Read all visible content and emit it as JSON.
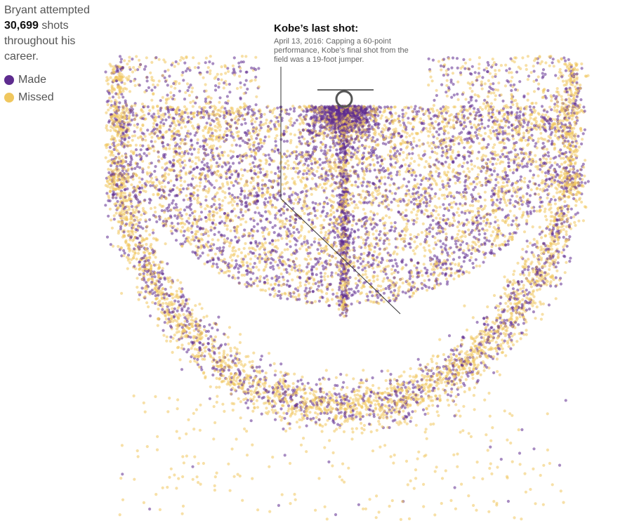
{
  "intro": {
    "prefix": "Bryant attempted",
    "count": "30,699",
    "suffix": " shots throughout his career."
  },
  "legend": {
    "made_label": "Made",
    "missed_label": "Missed"
  },
  "colors": {
    "made": "#5e2c8f",
    "missed": "#f0c75e",
    "highlight_ring": "#555555",
    "annotation_line": "#333333"
  },
  "annotation": {
    "title": "Kobe’s last shot:",
    "body": "April 13, 2016: Capping a 60-point performance, Kobe’s final shot from the field was a 19-foot jumper."
  },
  "chart_data": {
    "type": "scatter",
    "title": "",
    "xlabel": "",
    "ylabel": "",
    "total_attempts": 30699,
    "series": [
      {
        "name": "Made",
        "color": "#5e2c8f"
      },
      {
        "name": "Missed",
        "color": "#f0c75e"
      }
    ],
    "highlight": {
      "label": "Kobe’s last shot",
      "result": "Made",
      "distance_ft": 19
    },
    "grid": false,
    "legend_position": "top-left"
  }
}
